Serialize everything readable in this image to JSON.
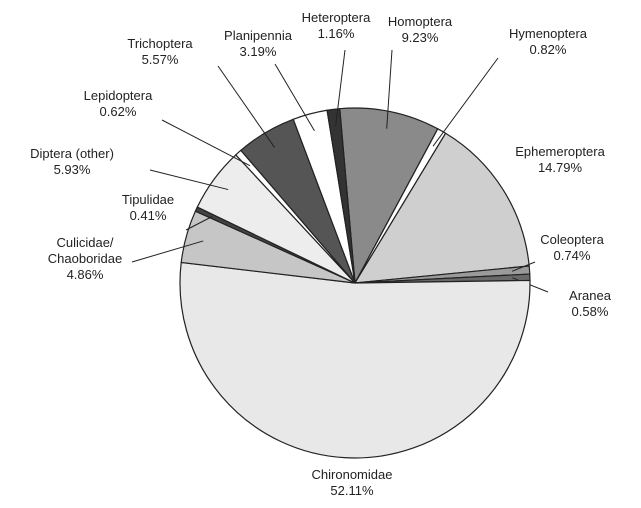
{
  "chart_data": {
    "type": "pie",
    "categories": [
      "Homoptera",
      "Hymenoptera",
      "Ephemeroptera",
      "Coleoptera",
      "Aranea",
      "Chironomidae",
      "Culicidae/ Chaoboridae",
      "Tipulidae",
      "Diptera (other)",
      "Lepidoptera",
      "Trichoptera",
      "Planipennia",
      "Heteroptera"
    ],
    "values": [
      9.23,
      0.82,
      14.79,
      0.74,
      0.58,
      52.11,
      4.86,
      0.41,
      5.93,
      0.62,
      5.57,
      3.19,
      1.16
    ],
    "value_labels": [
      "9.23%",
      "0.82%",
      "14.79%",
      "0.74%",
      "0.58%",
      "52.11%",
      "4.86%",
      "0.41%",
      "5.93%",
      "0.62%",
      "5.57%",
      "3.19%",
      "1.16%"
    ],
    "colors": [
      "#8a8a8a",
      "#ffffff",
      "#cfcfcf",
      "#9a9a9a",
      "#6a6a6a",
      "#e8e8e8",
      "#c6c6c6",
      "#444444",
      "#ededed",
      "#ffffff",
      "#555555",
      "#ffffff",
      "#333333"
    ]
  }
}
